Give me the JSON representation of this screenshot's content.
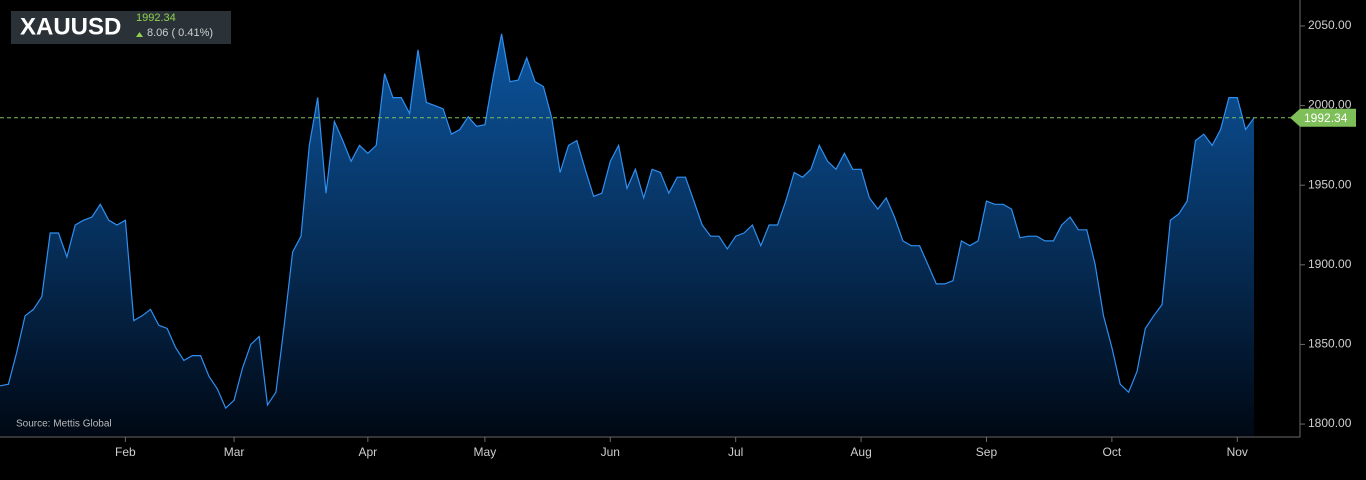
{
  "header": {
    "ticker": "XAUUSD",
    "change": "8.06 ( 0.41%)"
  },
  "source": "Source: Mettis Global",
  "chart_data": {
    "type": "area",
    "color": "#2f8ff0",
    "categories": [
      null,
      null,
      null,
      null,
      null,
      null,
      null,
      null,
      null,
      null,
      null,
      null,
      null,
      null,
      null,
      "Feb",
      null,
      null,
      null,
      null,
      null,
      null,
      null,
      null,
      null,
      null,
      null,
      null,
      "Mar",
      null,
      null,
      null,
      null,
      null,
      null,
      null,
      null,
      null,
      null,
      null,
      null,
      null,
      null,
      null,
      "Apr",
      null,
      null,
      null,
      null,
      null,
      null,
      null,
      null,
      null,
      null,
      null,
      null,
      null,
      "May",
      null,
      null,
      null,
      null,
      null,
      null,
      null,
      null,
      null,
      null,
      null,
      null,
      null,
      null,
      "Jun",
      null,
      null,
      null,
      null,
      null,
      null,
      null,
      null,
      null,
      null,
      null,
      null,
      null,
      null,
      "Jul",
      null,
      null,
      null,
      null,
      null,
      null,
      null,
      null,
      null,
      null,
      null,
      null,
      null,
      null,
      "Aug",
      null,
      null,
      null,
      null,
      null,
      null,
      null,
      null,
      null,
      null,
      null,
      null,
      null,
      null,
      "Sep",
      null,
      null,
      null,
      null,
      null,
      null,
      null,
      null,
      null,
      null,
      null,
      null,
      null,
      null,
      "Oct",
      null,
      null,
      null,
      null,
      null,
      null,
      null,
      null,
      null,
      null,
      null,
      null,
      null,
      null,
      "Nov",
      null,
      null
    ],
    "values": [
      1824,
      1825,
      1845,
      1868,
      1872,
      1880,
      1920,
      1920,
      1905,
      1925,
      1928,
      1930,
      1938,
      1928,
      1925,
      1928,
      1865,
      1868,
      1872,
      1862,
      1860,
      1848,
      1840,
      1843,
      1843,
      1830,
      1822,
      1810,
      1815,
      1835,
      1850,
      1855,
      1812,
      1820,
      1862,
      1908,
      1918,
      1975,
      2005,
      1945,
      1990,
      1978,
      1965,
      1975,
      1970,
      1975,
      2020,
      2005,
      2005,
      1995,
      2035,
      2002,
      2000,
      1998,
      1982,
      1985,
      1993,
      1987,
      1988,
      2018,
      2045,
      2015,
      2016,
      2030,
      2015,
      2012,
      1992,
      1958,
      1975,
      1978,
      1960,
      1943,
      1945,
      1965,
      1975,
      1948,
      1960,
      1942,
      1960,
      1958,
      1945,
      1955,
      1955,
      1940,
      1925,
      1918,
      1918,
      1910,
      1918,
      1920,
      1925,
      1912,
      1925,
      1925,
      1940,
      1958,
      1955,
      1960,
      1975,
      1965,
      1960,
      1970,
      1960,
      1960,
      1942,
      1935,
      1942,
      1930,
      1915,
      1912,
      1912,
      1900,
      1888,
      1888,
      1890,
      1915,
      1912,
      1915,
      1940,
      1938,
      1938,
      1935,
      1917,
      1918,
      1918,
      1915,
      1915,
      1925,
      1930,
      1922,
      1922,
      1900,
      1868,
      1848,
      1825,
      1820,
      1833,
      1860,
      1868,
      1875,
      1928,
      1932,
      1940,
      1978,
      1982,
      1975,
      1985,
      2005,
      2005,
      1985,
      1992.34
    ],
    "ylim": [
      1792.5,
      2066.3
    ],
    "yticks": [
      {
        "value": 1800,
        "label": "1800.00"
      },
      {
        "value": 1850,
        "label": "1850.00"
      },
      {
        "value": 1900,
        "label": "1900.00"
      },
      {
        "value": 1950,
        "label": "1950.00"
      },
      {
        "value": 2000,
        "label": "2000.00"
      },
      {
        "value": 2050,
        "label": "2050.00"
      }
    ]
  }
}
